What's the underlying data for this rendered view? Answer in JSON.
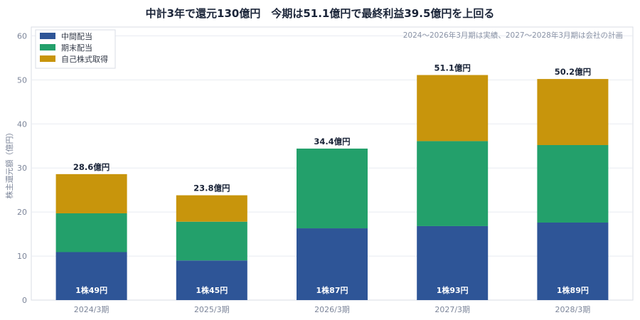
{
  "chart_data": {
    "type": "bar",
    "stacked": true,
    "title": "中計3年で還元130億円　今期は51.1億円で最終利益39.5億円を上回る",
    "note": "2024〜2026年3月期は実績、2027〜2028年3月期は会社の計画",
    "ylabel": "株主還元額（億円）",
    "xlabel": "",
    "ylim": [
      0,
      62
    ],
    "yticks": [
      0,
      10,
      20,
      30,
      40,
      50,
      60
    ],
    "categories": [
      "2024/3期",
      "2025/3期",
      "2026/3期",
      "2027/3期",
      "2028/3期"
    ],
    "series": [
      {
        "name": "中間配当",
        "color": "#2e5597",
        "values": [
          10.9,
          9.0,
          16.3,
          16.8,
          17.6
        ]
      },
      {
        "name": "期末配当",
        "color": "#23a06b",
        "values": [
          8.8,
          8.8,
          18.1,
          19.3,
          17.6
        ]
      },
      {
        "name": "自己株式取得",
        "color": "#c8950c",
        "values": [
          8.9,
          6.0,
          0,
          15.0,
          15.0
        ]
      }
    ],
    "totals": [
      "28.6億円",
      "23.8億円",
      "34.4億円",
      "51.1億円",
      "50.2億円"
    ],
    "bar_labels": [
      "1株49円",
      "1株45円",
      "1株87円",
      "1株93円",
      "1株89円"
    ],
    "legend_position": "top-left",
    "grid": true
  }
}
